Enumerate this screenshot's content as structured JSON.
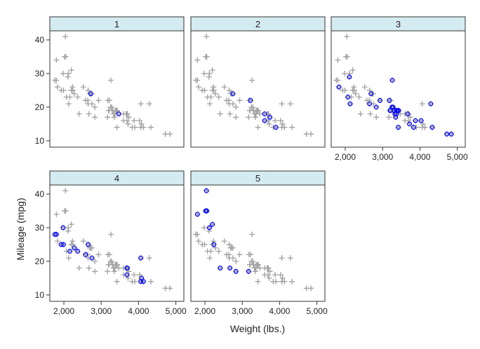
{
  "chart_data": {
    "type": "scatter",
    "xlabel": "Weight (lbs.)",
    "ylabel": "Mileage (mpg)",
    "panels": [
      "1",
      "2",
      "3",
      "4",
      "5"
    ],
    "xlim": [
      1624,
      5214
    ],
    "ylim": [
      8.1,
      42.7
    ],
    "xticks": [
      2000,
      3000,
      4000,
      5000
    ],
    "xtick_labels": [
      "2,000",
      "3,000",
      "4,000",
      "5,000"
    ],
    "yticks": [
      10,
      20,
      30,
      40
    ],
    "ytick_labels": [
      "10",
      "20",
      "30",
      "40"
    ],
    "background_color": "#a0a0a0",
    "highlight_color": "#0000ff",
    "columns": [
      "weight",
      "mpg",
      "panel"
    ],
    "points": [
      [
        2930,
        22,
        3
      ],
      [
        3350,
        17,
        3
      ],
      [
        2640,
        22,
        null
      ],
      [
        3250,
        20,
        3
      ],
      [
        4080,
        15,
        4
      ],
      [
        3670,
        18,
        3
      ],
      [
        2230,
        26,
        null
      ],
      [
        3280,
        20,
        3
      ],
      [
        3880,
        16,
        3
      ],
      [
        3400,
        19,
        3
      ],
      [
        4330,
        14,
        3
      ],
      [
        3900,
        14,
        2
      ],
      [
        4290,
        21,
        3
      ],
      [
        2110,
        29,
        3
      ],
      [
        3690,
        16,
        4
      ],
      [
        3180,
        22,
        3
      ],
      [
        3220,
        22,
        2
      ],
      [
        2750,
        24,
        2
      ],
      [
        3430,
        19,
        3
      ],
      [
        2120,
        30,
        5
      ],
      [
        3600,
        18,
        2
      ],
      [
        3600,
        16,
        2
      ],
      [
        3740,
        17,
        2
      ],
      [
        1800,
        28,
        4
      ],
      [
        2650,
        21,
        3
      ],
      [
        4840,
        12,
        3
      ],
      [
        4720,
        12,
        3
      ],
      [
        3830,
        14,
        3
      ],
      [
        2580,
        22,
        4
      ],
      [
        4060,
        14,
        4
      ],
      [
        3720,
        15,
        3
      ],
      [
        3370,
        18,
        3
      ],
      [
        4130,
        14,
        4
      ],
      [
        2830,
        20,
        3
      ],
      [
        4060,
        21,
        4
      ],
      [
        3310,
        19,
        3
      ],
      [
        3300,
        19,
        3
      ],
      [
        3690,
        18,
        4
      ],
      [
        3370,
        19,
        3
      ],
      [
        2720,
        24,
        1
      ],
      [
        4030,
        16,
        3
      ],
      [
        3260,
        28,
        3
      ],
      [
        1800,
        34,
        5
      ],
      [
        2200,
        25,
        null
      ],
      [
        2520,
        26,
        null
      ],
      [
        3330,
        18,
        3
      ],
      [
        3700,
        18,
        4
      ],
      [
        3470,
        18,
        1
      ],
      [
        3210,
        19,
        3
      ],
      [
        3200,
        19,
        3
      ],
      [
        3420,
        19,
        null
      ],
      [
        2690,
        24,
        3
      ],
      [
        2830,
        17,
        5
      ],
      [
        2070,
        23,
        3
      ],
      [
        2650,
        25,
        4
      ],
      [
        2370,
        23,
        4
      ],
      [
        2020,
        35,
        5
      ],
      [
        2280,
        24,
        4
      ],
      [
        2750,
        21,
        4
      ],
      [
        2130,
        21,
        3
      ],
      [
        2240,
        25,
        5
      ],
      [
        1760,
        28,
        4
      ],
      [
        1980,
        30,
        4
      ],
      [
        3420,
        14,
        3
      ],
      [
        1830,
        26,
        3
      ],
      [
        2050,
        35,
        5
      ],
      [
        2410,
        18,
        5
      ],
      [
        2200,
        31,
        5
      ],
      [
        2670,
        18,
        5
      ],
      [
        2160,
        23,
        4
      ],
      [
        2040,
        41,
        5
      ],
      [
        1930,
        25,
        4
      ],
      [
        1990,
        25,
        4
      ],
      [
        3170,
        17,
        5
      ]
    ]
  }
}
